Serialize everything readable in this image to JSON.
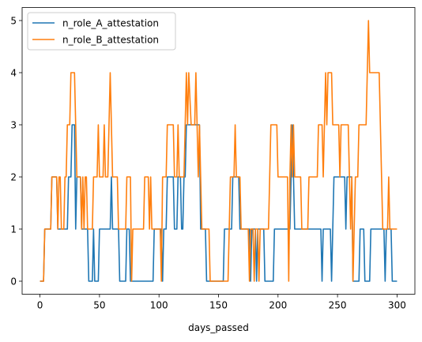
{
  "chart_data": {
    "type": "line",
    "title": "",
    "xlabel": "days_passed",
    "ylabel": "",
    "xlim": [
      -15,
      315
    ],
    "ylim": [
      -0.25,
      5.25
    ],
    "xticks": [
      0,
      50,
      100,
      150,
      200,
      250,
      300
    ],
    "yticks": [
      0,
      1,
      2,
      3,
      4,
      5
    ],
    "grid": false,
    "legend": "top-left",
    "series": [
      {
        "name": "n_role_A_attestation",
        "color": "#1f77b4",
        "points": [
          [
            0,
            0
          ],
          [
            3,
            0
          ],
          [
            4,
            1
          ],
          [
            9,
            1
          ],
          [
            10,
            2
          ],
          [
            14,
            2
          ],
          [
            15,
            1
          ],
          [
            23,
            1
          ],
          [
            24,
            2
          ],
          [
            26,
            2
          ],
          [
            27,
            3
          ],
          [
            29,
            3
          ],
          [
            30,
            1
          ],
          [
            31,
            2
          ],
          [
            34,
            2
          ],
          [
            35,
            1
          ],
          [
            40,
            1
          ],
          [
            41,
            0
          ],
          [
            44,
            0
          ],
          [
            45,
            1
          ],
          [
            46,
            0
          ],
          [
            49,
            0
          ],
          [
            50,
            1
          ],
          [
            59,
            1
          ],
          [
            60,
            2
          ],
          [
            61,
            1
          ],
          [
            66,
            1
          ],
          [
            67,
            0
          ],
          [
            72,
            0
          ],
          [
            73,
            1
          ],
          [
            75,
            1
          ],
          [
            76,
            0
          ],
          [
            95,
            0
          ],
          [
            96,
            1
          ],
          [
            102,
            1
          ],
          [
            103,
            0
          ],
          [
            104,
            1
          ],
          [
            106,
            1
          ],
          [
            107,
            2
          ],
          [
            112,
            2
          ],
          [
            113,
            1
          ],
          [
            115,
            1
          ],
          [
            116,
            2
          ],
          [
            118,
            2
          ],
          [
            119,
            1
          ],
          [
            120,
            1
          ],
          [
            121,
            2
          ],
          [
            122,
            2
          ],
          [
            123,
            3
          ],
          [
            134,
            3
          ],
          [
            135,
            1
          ],
          [
            139,
            1
          ],
          [
            140,
            0
          ],
          [
            154,
            0
          ],
          [
            155,
            1
          ],
          [
            161,
            1
          ],
          [
            162,
            2
          ],
          [
            167,
            2
          ],
          [
            168,
            1
          ],
          [
            176,
            1
          ],
          [
            177,
            0
          ],
          [
            178,
            1
          ],
          [
            181,
            1
          ],
          [
            182,
            0
          ],
          [
            183,
            1
          ],
          [
            188,
            1
          ],
          [
            189,
            0
          ],
          [
            196,
            0
          ],
          [
            197,
            1
          ],
          [
            210,
            1
          ],
          [
            211,
            2
          ],
          [
            212,
            3
          ],
          [
            213,
            2
          ],
          [
            214,
            1
          ],
          [
            236,
            1
          ],
          [
            237,
            0
          ],
          [
            238,
            1
          ],
          [
            244,
            1
          ],
          [
            245,
            0
          ],
          [
            246,
            1
          ],
          [
            247,
            2
          ],
          [
            256,
            2
          ],
          [
            257,
            1
          ],
          [
            258,
            2
          ],
          [
            262,
            2
          ],
          [
            263,
            0
          ],
          [
            268,
            0
          ],
          [
            269,
            1
          ],
          [
            272,
            1
          ],
          [
            273,
            0
          ],
          [
            277,
            0
          ],
          [
            278,
            1
          ],
          [
            289,
            1
          ],
          [
            290,
            0
          ],
          [
            291,
            1
          ],
          [
            295,
            1
          ],
          [
            296,
            0
          ],
          [
            300,
            0
          ]
        ]
      },
      {
        "name": "n_role_B_attestation",
        "color": "#ff7f0e",
        "points": [
          [
            0,
            0
          ],
          [
            3,
            0
          ],
          [
            4,
            1
          ],
          [
            9,
            1
          ],
          [
            10,
            2
          ],
          [
            14,
            2
          ],
          [
            15,
            1
          ],
          [
            16,
            2
          ],
          [
            17,
            2
          ],
          [
            18,
            1
          ],
          [
            20,
            1
          ],
          [
            21,
            2
          ],
          [
            22,
            2
          ],
          [
            23,
            3
          ],
          [
            25,
            3
          ],
          [
            26,
            4
          ],
          [
            29,
            4
          ],
          [
            30,
            3
          ],
          [
            31,
            2
          ],
          [
            34,
            2
          ],
          [
            35,
            1
          ],
          [
            36,
            2
          ],
          [
            37,
            1
          ],
          [
            38,
            2
          ],
          [
            39,
            2
          ],
          [
            40,
            1
          ],
          [
            44,
            1
          ],
          [
            45,
            2
          ],
          [
            48,
            2
          ],
          [
            49,
            3
          ],
          [
            50,
            2
          ],
          [
            53,
            2
          ],
          [
            54,
            3
          ],
          [
            55,
            2
          ],
          [
            57,
            2
          ],
          [
            58,
            3
          ],
          [
            59,
            4
          ],
          [
            60,
            3
          ],
          [
            61,
            2
          ],
          [
            65,
            2
          ],
          [
            66,
            1
          ],
          [
            72,
            1
          ],
          [
            73,
            2
          ],
          [
            76,
            2
          ],
          [
            77,
            0
          ],
          [
            78,
            1
          ],
          [
            87,
            1
          ],
          [
            88,
            2
          ],
          [
            91,
            2
          ],
          [
            92,
            1
          ],
          [
            93,
            2
          ],
          [
            94,
            1
          ],
          [
            101,
            1
          ],
          [
            102,
            0
          ],
          [
            103,
            2
          ],
          [
            106,
            2
          ],
          [
            107,
            3
          ],
          [
            112,
            3
          ],
          [
            113,
            2
          ],
          [
            115,
            2
          ],
          [
            116,
            3
          ],
          [
            117,
            2
          ],
          [
            121,
            2
          ],
          [
            122,
            3
          ],
          [
            123,
            4
          ],
          [
            124,
            3
          ],
          [
            125,
            4
          ],
          [
            127,
            3
          ],
          [
            130,
            3
          ],
          [
            131,
            4
          ],
          [
            132,
            3
          ],
          [
            133,
            2
          ],
          [
            134,
            3
          ],
          [
            135,
            2
          ],
          [
            136,
            1
          ],
          [
            142,
            1
          ],
          [
            143,
            0
          ],
          [
            158,
            0
          ],
          [
            159,
            1
          ],
          [
            160,
            2
          ],
          [
            163,
            2
          ],
          [
            164,
            3
          ],
          [
            165,
            2
          ],
          [
            168,
            2
          ],
          [
            169,
            1
          ],
          [
            175,
            1
          ],
          [
            176,
            0
          ],
          [
            177,
            1
          ],
          [
            179,
            1
          ],
          [
            180,
            0
          ],
          [
            181,
            1
          ],
          [
            183,
            1
          ],
          [
            184,
            0
          ],
          [
            185,
            1
          ],
          [
            192,
            1
          ],
          [
            193,
            2
          ],
          [
            194,
            3
          ],
          [
            199,
            3
          ],
          [
            200,
            2
          ],
          [
            208,
            2
          ],
          [
            209,
            0
          ],
          [
            210,
            2
          ],
          [
            211,
            3
          ],
          [
            212,
            2
          ],
          [
            213,
            3
          ],
          [
            214,
            2
          ],
          [
            219,
            2
          ],
          [
            220,
            1
          ],
          [
            225,
            1
          ],
          [
            226,
            2
          ],
          [
            233,
            2
          ],
          [
            234,
            3
          ],
          [
            237,
            3
          ],
          [
            238,
            2
          ],
          [
            239,
            3
          ],
          [
            240,
            4
          ],
          [
            241,
            3
          ],
          [
            242,
            4
          ],
          [
            245,
            4
          ],
          [
            246,
            3
          ],
          [
            251,
            3
          ],
          [
            252,
            2
          ],
          [
            253,
            3
          ],
          [
            259,
            3
          ],
          [
            260,
            2
          ],
          [
            261,
            1
          ],
          [
            262,
            2
          ],
          [
            263,
            0
          ],
          [
            264,
            1
          ],
          [
            265,
            2
          ],
          [
            267,
            2
          ],
          [
            268,
            3
          ],
          [
            274,
            3
          ],
          [
            275,
            4
          ],
          [
            276,
            5
          ],
          [
            277,
            4
          ],
          [
            285,
            4
          ],
          [
            286,
            3
          ],
          [
            287,
            2
          ],
          [
            288,
            1
          ],
          [
            292,
            1
          ],
          [
            293,
            2
          ],
          [
            294,
            1
          ],
          [
            300,
            1
          ]
        ]
      }
    ]
  }
}
